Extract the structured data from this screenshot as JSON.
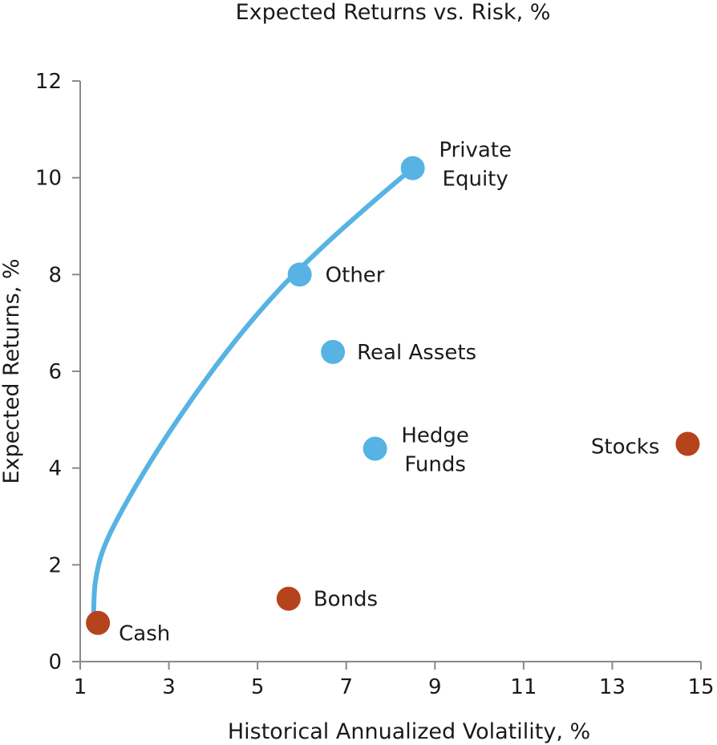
{
  "chart_data": {
    "type": "scatter",
    "title": "Expected Returns vs. Risk, %",
    "xlabel": "Historical Annualized Volatility, %",
    "ylabel": "Expected Returns, %",
    "xlim": [
      1,
      15
    ],
    "ylim": [
      0,
      12
    ],
    "xticks": [
      1,
      3,
      5,
      7,
      9,
      11,
      13,
      15
    ],
    "yticks": [
      0,
      2,
      4,
      6,
      8,
      10,
      12
    ],
    "grid": false,
    "colors": {
      "blue": "#57b3e3",
      "orange": "#b5431c",
      "axis": "#8a8a8a"
    },
    "series": [
      {
        "color": "#b5431c",
        "points": [
          {
            "label": "Cash",
            "x": 1.4,
            "y": 0.8
          },
          {
            "label": "Bonds",
            "x": 5.7,
            "y": 1.3
          },
          {
            "label": "Stocks",
            "x": 14.7,
            "y": 4.5
          }
        ]
      },
      {
        "color": "#57b3e3",
        "points": [
          {
            "label": "Other",
            "x": 5.95,
            "y": 8.0
          },
          {
            "label": "Real Assets",
            "x": 6.7,
            "y": 6.4
          },
          {
            "label": "Hedge Funds",
            "x": 7.65,
            "y": 4.4
          },
          {
            "label": "Private Equity",
            "x": 8.5,
            "y": 10.2
          }
        ]
      }
    ],
    "frontier": {
      "color": "#57b3e3",
      "points": [
        {
          "x": 1.3,
          "y": 0.9
        },
        {
          "x": 1.35,
          "y": 1.7
        },
        {
          "x": 1.6,
          "y": 2.5
        },
        {
          "x": 2.3,
          "y": 3.7
        },
        {
          "x": 3.2,
          "y": 5.0
        },
        {
          "x": 4.3,
          "y": 6.4
        },
        {
          "x": 5.4,
          "y": 7.6
        },
        {
          "x": 6.5,
          "y": 8.6
        },
        {
          "x": 7.6,
          "y": 9.5
        },
        {
          "x": 8.5,
          "y": 10.2
        }
      ]
    }
  }
}
